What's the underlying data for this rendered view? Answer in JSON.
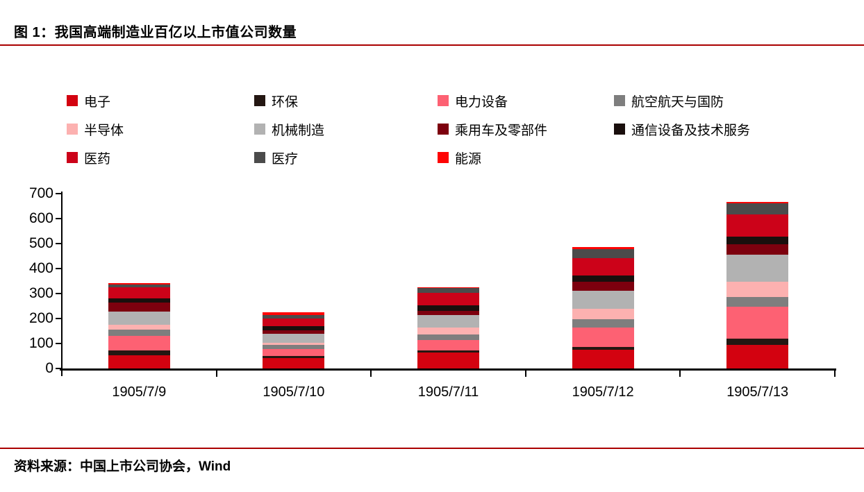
{
  "title": "图 1：我国高端制造业百亿以上市值公司数量",
  "source": "资料来源：中国上市公司协会，Wind",
  "accent_color": "#AA0000",
  "axis_color": "#000000",
  "chart_data": {
    "type": "bar",
    "stacked": true,
    "title": "图 1：我国高端制造业百亿以上市值公司数量",
    "source": "资料来源：中国上市公司协会，Wind",
    "categories": [
      "1905/7/9",
      "1905/7/10",
      "1905/7/11",
      "1905/7/12",
      "1905/7/13"
    ],
    "series": [
      {
        "name": "电子",
        "color": "#D30210",
        "values": [
          53,
          43,
          63,
          74,
          95
        ]
      },
      {
        "name": "环保",
        "color": "#241712",
        "values": [
          19,
          8,
          9,
          12,
          25
        ]
      },
      {
        "name": "电力设备",
        "color": "#FD6173",
        "values": [
          59,
          26,
          41,
          78,
          126
        ]
      },
      {
        "name": "航空航天与国防",
        "color": "#7E7E7E",
        "values": [
          25,
          17,
          23,
          32,
          41
        ]
      },
      {
        "name": "半导体",
        "color": "#FCB1B0",
        "values": [
          18,
          10,
          27,
          43,
          60
        ]
      },
      {
        "name": "机械制造",
        "color": "#B2B2B2",
        "values": [
          55,
          35,
          50,
          72,
          110
        ]
      },
      {
        "name": "乘用车及零部件",
        "color": "#7D000E",
        "values": [
          34,
          14,
          18,
          37,
          39
        ]
      },
      {
        "name": "通信设备及技术服务",
        "color": "#1A0F0D",
        "values": [
          19,
          18,
          23,
          25,
          31
        ]
      },
      {
        "name": "医药",
        "color": "#CC0219",
        "values": [
          42,
          30,
          48,
          70,
          90
        ]
      },
      {
        "name": "医疗",
        "color": "#4B4B4B",
        "values": [
          13,
          14,
          20,
          36,
          45
        ]
      },
      {
        "name": "能源",
        "color": "#FE0404",
        "values": [
          4,
          10,
          3,
          6,
          6
        ]
      }
    ],
    "totals": [
      341,
      225,
      325,
      485,
      668
    ],
    "xlabel": "",
    "ylabel": "",
    "ylim": [
      0,
      700
    ],
    "yticks": [
      0,
      100,
      200,
      300,
      400,
      500,
      600,
      700
    ],
    "legend_position": "top",
    "grid": false
  }
}
